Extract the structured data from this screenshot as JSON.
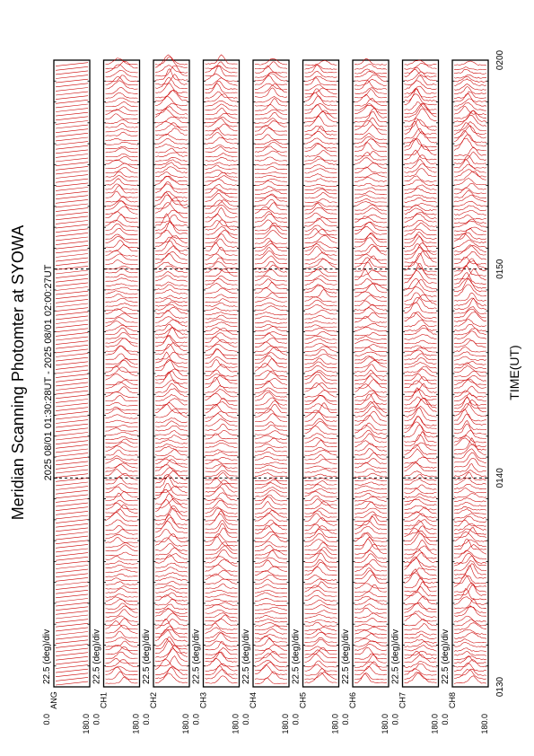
{
  "chart_data": {
    "type": "line",
    "title": "Meridian Scanning Photomter at SYOWA",
    "subtitle": "2025 08/01 01:30:28UT - 2025 08/01 02:00:27UT",
    "xlabel": "TIME(UT)",
    "x_ticks": [
      "0130",
      "0140",
      "0150",
      "0200"
    ],
    "x_range": [
      "0130",
      "0200"
    ],
    "scale_label": "22.5 (deg)/div",
    "y_range": [
      0.0,
      180.0
    ],
    "y_tick_top": "180.0",
    "y_tick_bottom": "0.0",
    "grid": "dashed vertical lines at 0140 and 0150",
    "line_color": "#cc0000",
    "panels": [
      {
        "channel": "ANG",
        "trace_style": "sawtooth",
        "activity": 0.0
      },
      {
        "channel": "CH1",
        "trace_style": "emission",
        "activity": 0.45
      },
      {
        "channel": "CH2",
        "trace_style": "emission",
        "activity": 0.75
      },
      {
        "channel": "CH3",
        "trace_style": "emission",
        "activity": 0.6
      },
      {
        "channel": "CH4",
        "trace_style": "emission",
        "activity": 0.5
      },
      {
        "channel": "CH5",
        "trace_style": "emission",
        "activity": 0.55
      },
      {
        "channel": "CH6",
        "trace_style": "emission",
        "activity": 0.6
      },
      {
        "channel": "CH7",
        "trace_style": "emission",
        "activity": 0.85
      },
      {
        "channel": "CH8",
        "trace_style": "emission",
        "activity": 0.8
      }
    ]
  }
}
